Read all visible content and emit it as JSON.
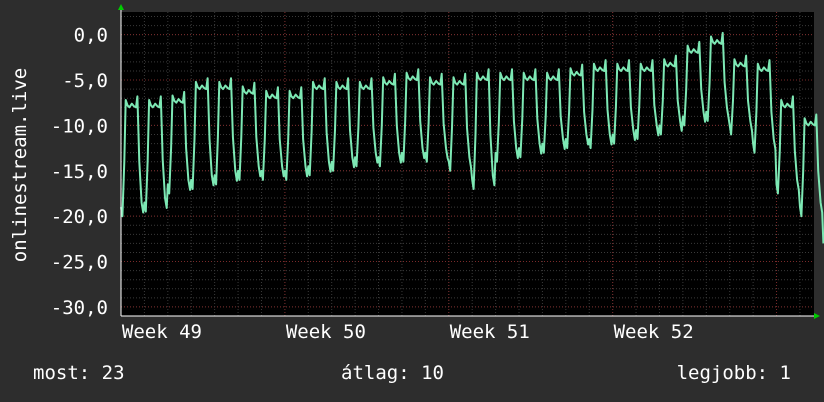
{
  "chart_data": {
    "type": "line",
    "ylabel": "onlinestream.live",
    "ylim": [
      -31,
      2.5
    ],
    "yticks": [
      0,
      -5,
      -10,
      -15,
      -20,
      -25,
      -30
    ],
    "ytick_labels": [
      "0,0",
      "-5,0",
      "-10,0",
      "-15,0",
      "-20,0",
      "-25,0",
      "-30,0"
    ],
    "xlim": [
      0,
      29.6
    ],
    "xticks": [
      {
        "label": "Week 49",
        "x": 1.75
      },
      {
        "label": "Week 50",
        "x": 8.75
      },
      {
        "label": "Week 51",
        "x": 15.75
      },
      {
        "label": "Week 52",
        "x": 22.75
      }
    ],
    "series": [
      {
        "color": "#7de8b4",
        "days": [
          {
            "hi": -8.0,
            "lo": -20.0
          },
          {
            "hi": -8.0,
            "lo": -19.5
          },
          {
            "hi": -7.5,
            "lo": -17.5
          },
          {
            "hi": -6.0,
            "lo": -17.0
          },
          {
            "hi": -6.0,
            "lo": -16.5
          },
          {
            "hi": -6.5,
            "lo": -16.0
          },
          {
            "hi": -7.0,
            "lo": -16.0
          },
          {
            "hi": -7.0,
            "lo": -16.0
          },
          {
            "hi": -6.0,
            "lo": -15.5
          },
          {
            "hi": -6.0,
            "lo": -15.0
          },
          {
            "hi": -6.0,
            "lo": -14.5
          },
          {
            "hi": -5.5,
            "lo": -14.5
          },
          {
            "hi": -5.0,
            "lo": -14.0
          },
          {
            "hi": -5.5,
            "lo": -14.0
          },
          {
            "hi": -5.5,
            "lo": -15.0
          },
          {
            "hi": -5.0,
            "lo": -17.0
          },
          {
            "hi": -5.0,
            "lo": -14.0
          },
          {
            "hi": -5.0,
            "lo": -13.5
          },
          {
            "hi": -5.0,
            "lo": -13.0
          },
          {
            "hi": -4.5,
            "lo": -12.5
          },
          {
            "hi": -4.0,
            "lo": -12.5
          },
          {
            "hi": -4.0,
            "lo": -12.0
          },
          {
            "hi": -4.0,
            "lo": -11.5
          },
          {
            "hi": -3.5,
            "lo": -11.0
          },
          {
            "hi": -2.0,
            "lo": -10.0
          },
          {
            "hi": -1.0,
            "lo": -9.5
          },
          {
            "hi": -3.5,
            "lo": -11.0
          },
          {
            "hi": -4.0,
            "lo": -13.0
          },
          {
            "hi": -8.0,
            "lo": -17.5
          },
          {
            "hi": -10.0,
            "lo": -20.0
          },
          {
            "hi": -13.0,
            "lo": -24.0
          },
          {
            "hi": -14.5,
            "lo": -24.0
          },
          {
            "hi": -15.0,
            "lo": -31.0
          }
        ]
      }
    ]
  },
  "footer": {
    "now": "most: 23",
    "avg": "átlag: 10",
    "best": "legjobb: 1"
  }
}
